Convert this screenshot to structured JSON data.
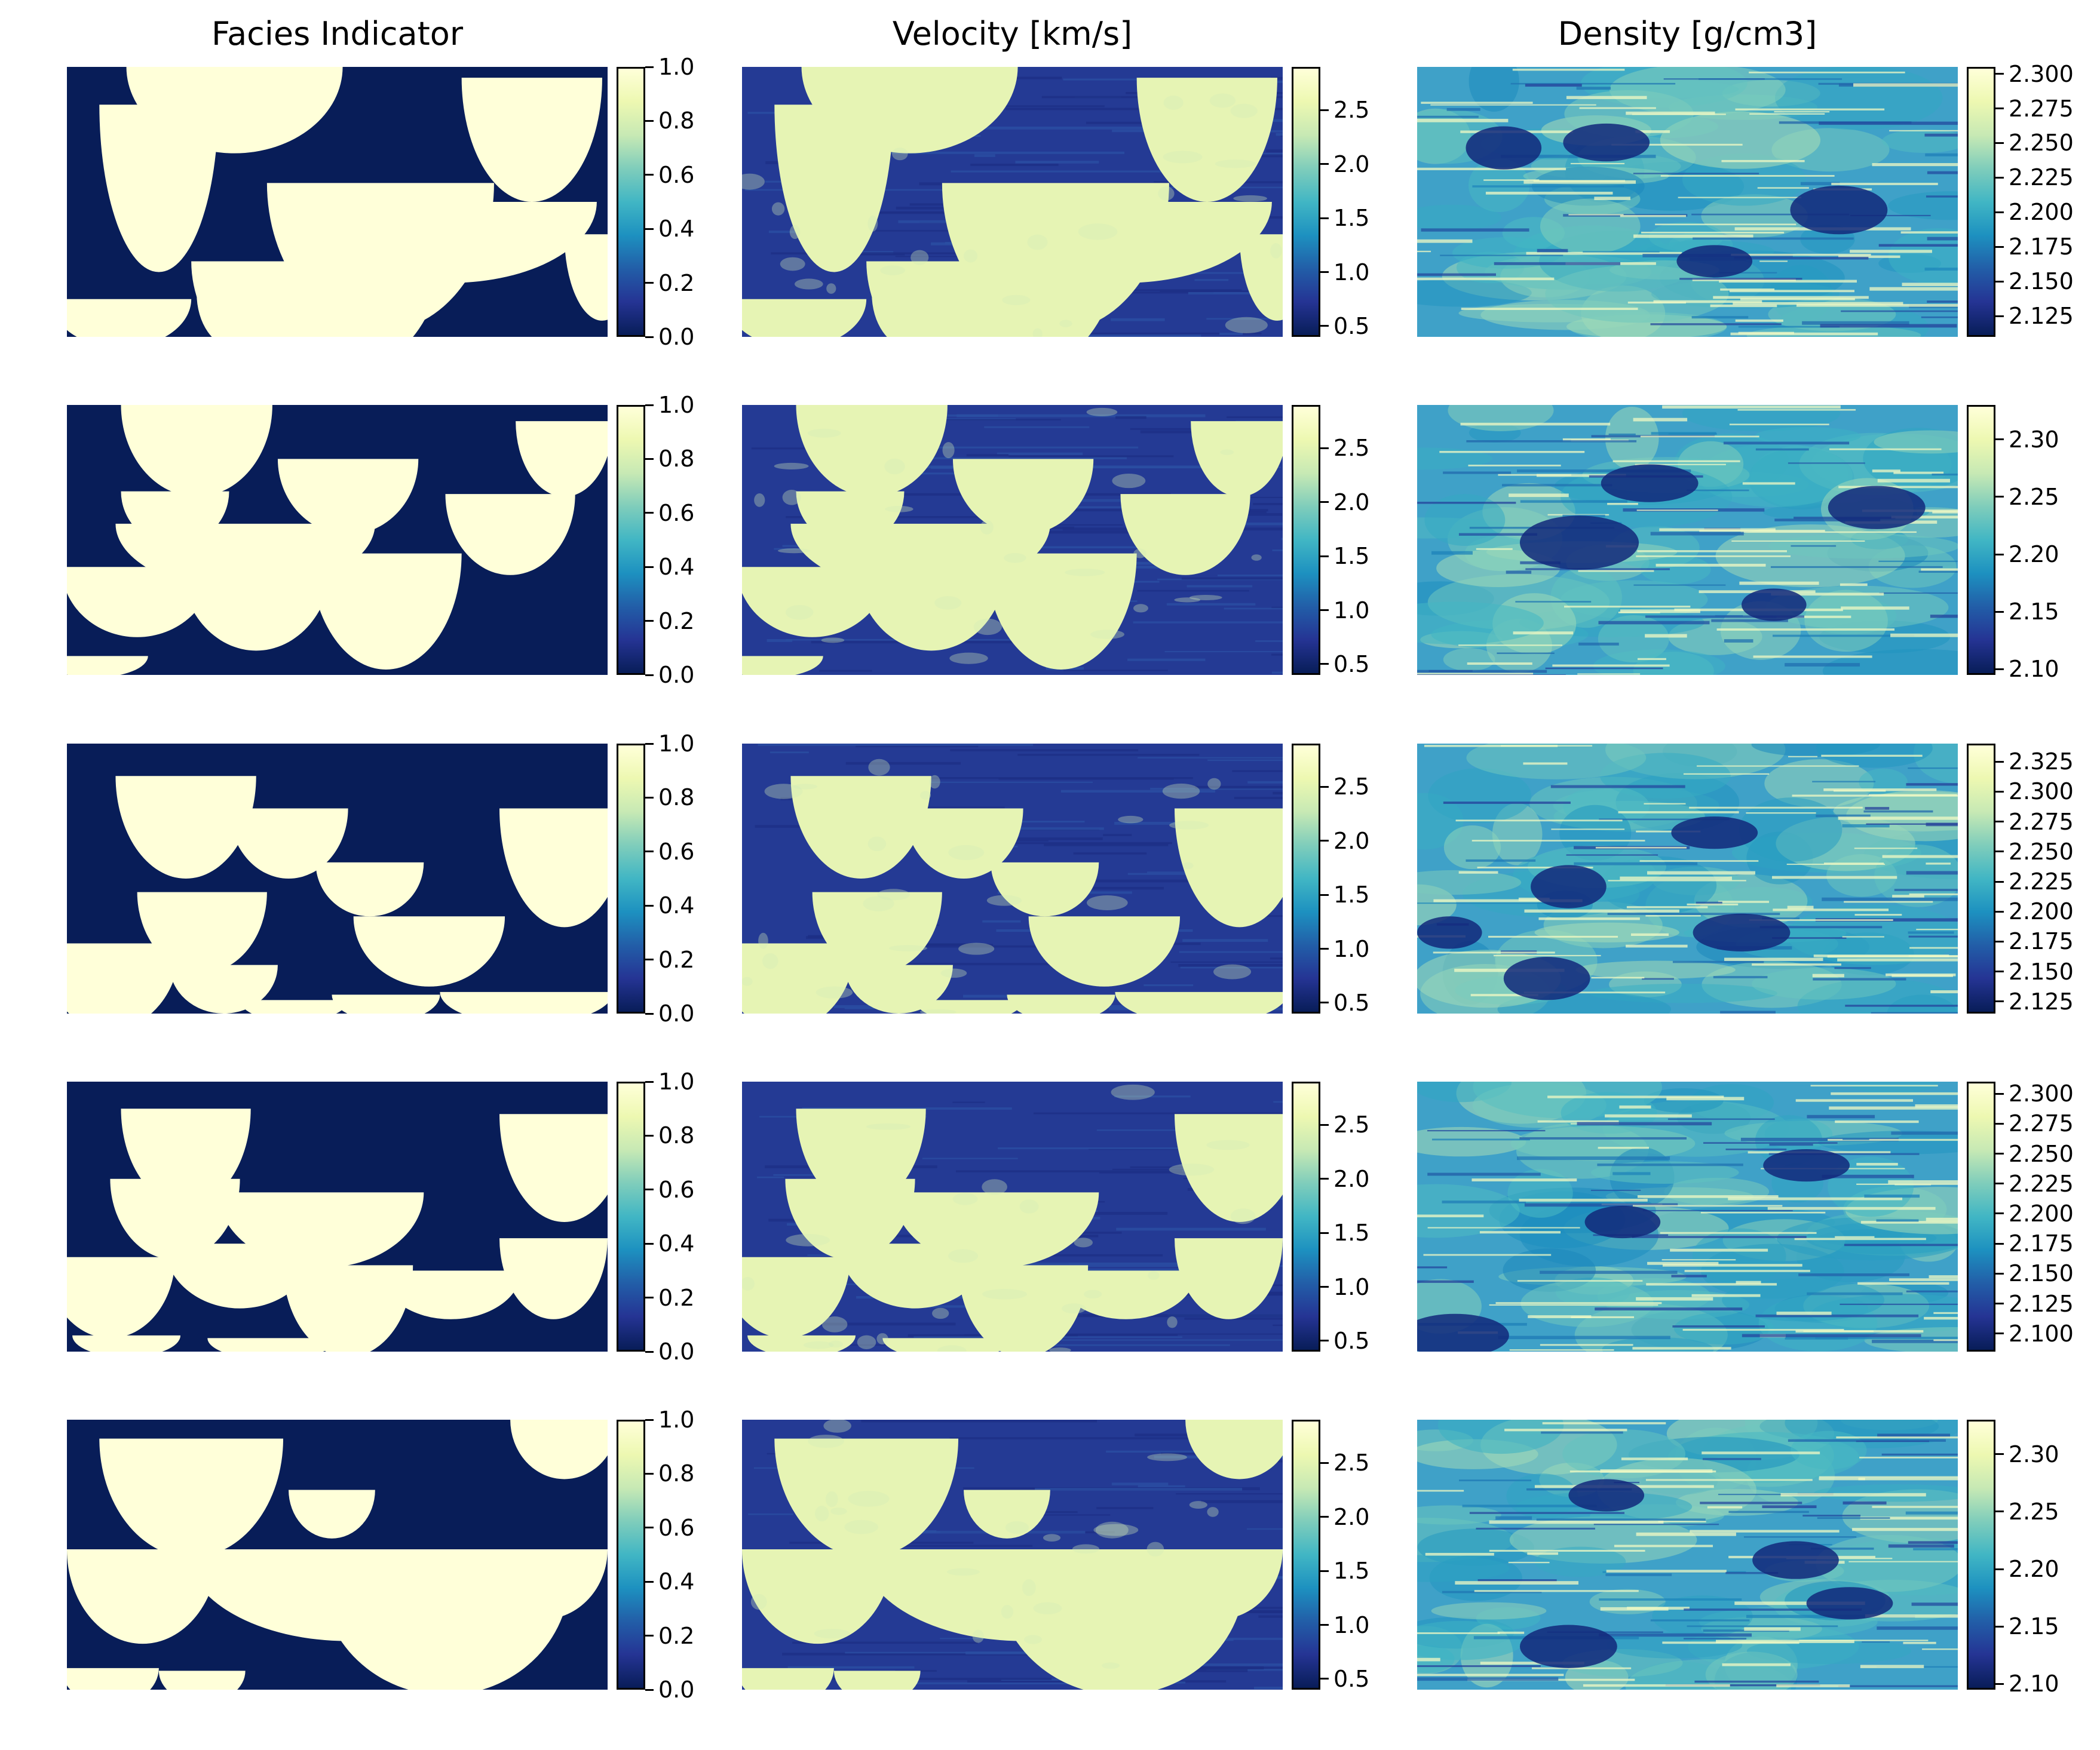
{
  "figure": {
    "columns": [
      {
        "title": "Facies Indicator",
        "quantity": "facies"
      },
      {
        "title": "Velocity [km/s]",
        "quantity": "velocity"
      },
      {
        "title": "Density [g/cm3]",
        "quantity": "density"
      }
    ],
    "colormap": [
      "#081d58",
      "#253494",
      "#225ea8",
      "#1d91c0",
      "#41b6c4",
      "#7fcdbb",
      "#c7e9b4",
      "#edf8b1",
      "#ffffd9"
    ]
  },
  "chart_data": [
    {
      "type": "heatmap",
      "row": 1,
      "title": "Facies Indicator",
      "colorbar": {
        "range": [
          0.0,
          1.0
        ],
        "ticks": [
          "0.0",
          "0.2",
          "0.4",
          "0.6",
          "0.8",
          "1.0"
        ]
      },
      "bodies": [
        [
          0.17,
          0.14,
          0.11,
          0.62
        ],
        [
          0.31,
          0.0,
          0.2,
          0.32
        ],
        [
          0.58,
          0.43,
          0.21,
          0.55
        ],
        [
          0.86,
          0.04,
          0.13,
          0.46
        ],
        [
          0.46,
          0.72,
          0.23,
          0.45
        ],
        [
          0.99,
          0.62,
          0.07,
          0.32
        ],
        [
          0.31,
          0.84,
          0.07,
          0.2
        ],
        [
          0.1,
          0.86,
          0.13,
          0.18
        ],
        [
          0.71,
          0.5,
          0.27,
          0.3
        ]
      ]
    },
    {
      "type": "heatmap",
      "row": 1,
      "title": "Velocity [km/s]",
      "colorbar": {
        "range": [
          0.4,
          2.9
        ],
        "ticks": [
          "0.5",
          "1.0",
          "1.5",
          "2.0",
          "2.5"
        ]
      },
      "bodies": [
        [
          0.17,
          0.14,
          0.11,
          0.62
        ],
        [
          0.31,
          0.0,
          0.2,
          0.32
        ],
        [
          0.58,
          0.43,
          0.21,
          0.55
        ],
        [
          0.86,
          0.04,
          0.13,
          0.46
        ],
        [
          0.46,
          0.72,
          0.23,
          0.45
        ],
        [
          0.99,
          0.62,
          0.07,
          0.32
        ],
        [
          0.31,
          0.84,
          0.07,
          0.2
        ],
        [
          0.1,
          0.86,
          0.13,
          0.18
        ],
        [
          0.71,
          0.5,
          0.27,
          0.3
        ]
      ]
    },
    {
      "type": "heatmap",
      "row": 1,
      "title": "Density [g/cm3]",
      "colorbar": {
        "range": [
          2.11,
          2.305
        ],
        "ticks": [
          "2.125",
          "2.150",
          "2.175",
          "2.200",
          "2.225",
          "2.250",
          "2.275",
          "2.300"
        ]
      },
      "lows": [
        [
          0.78,
          0.53,
          0.09,
          0.09
        ],
        [
          0.35,
          0.28,
          0.08,
          0.07
        ],
        [
          0.55,
          0.72,
          0.07,
          0.06
        ],
        [
          0.16,
          0.3,
          0.07,
          0.08
        ]
      ]
    },
    {
      "type": "heatmap",
      "row": 2,
      "title": "Facies Indicator",
      "colorbar": {
        "range": [
          0.0,
          1.0
        ],
        "ticks": [
          "0.0",
          "0.2",
          "0.4",
          "0.6",
          "0.8",
          "1.0"
        ]
      },
      "bodies": [
        [
          0.24,
          0.0,
          0.14,
          0.34
        ],
        [
          0.52,
          0.2,
          0.13,
          0.28
        ],
        [
          0.92,
          0.06,
          0.09,
          0.28
        ],
        [
          0.82,
          0.33,
          0.12,
          0.3
        ],
        [
          0.33,
          0.44,
          0.24,
          0.25
        ],
        [
          0.13,
          0.6,
          0.14,
          0.26
        ],
        [
          0.35,
          0.58,
          0.14,
          0.33
        ],
        [
          0.59,
          0.55,
          0.14,
          0.43
        ],
        [
          0.05,
          0.93,
          0.1,
          0.08
        ],
        [
          0.2,
          0.32,
          0.1,
          0.2
        ]
      ]
    },
    {
      "type": "heatmap",
      "row": 2,
      "title": "Velocity [km/s]",
      "colorbar": {
        "range": [
          0.4,
          2.9
        ],
        "ticks": [
          "0.5",
          "1.0",
          "1.5",
          "2.0",
          "2.5"
        ]
      },
      "bodies": [
        [
          0.24,
          0.0,
          0.14,
          0.34
        ],
        [
          0.52,
          0.2,
          0.13,
          0.28
        ],
        [
          0.92,
          0.06,
          0.09,
          0.28
        ],
        [
          0.82,
          0.33,
          0.12,
          0.3
        ],
        [
          0.33,
          0.44,
          0.24,
          0.25
        ],
        [
          0.13,
          0.6,
          0.14,
          0.26
        ],
        [
          0.35,
          0.58,
          0.14,
          0.33
        ],
        [
          0.59,
          0.55,
          0.14,
          0.43
        ],
        [
          0.05,
          0.93,
          0.1,
          0.08
        ],
        [
          0.2,
          0.32,
          0.1,
          0.2
        ]
      ]
    },
    {
      "type": "heatmap",
      "row": 2,
      "title": "Density [g/cm3]",
      "colorbar": {
        "range": [
          2.095,
          2.33
        ],
        "ticks": [
          "2.10",
          "2.15",
          "2.20",
          "2.25",
          "2.30"
        ]
      },
      "lows": [
        [
          0.3,
          0.51,
          0.11,
          0.1
        ],
        [
          0.85,
          0.38,
          0.09,
          0.08
        ],
        [
          0.43,
          0.29,
          0.09,
          0.07
        ],
        [
          0.66,
          0.74,
          0.06,
          0.06
        ]
      ]
    },
    {
      "type": "heatmap",
      "row": 3,
      "title": "Facies Indicator",
      "colorbar": {
        "range": [
          0.0,
          1.0
        ],
        "ticks": [
          "0.0",
          "0.2",
          "0.4",
          "0.6",
          "0.8",
          "1.0"
        ]
      },
      "bodies": [
        [
          0.22,
          0.12,
          0.13,
          0.38
        ],
        [
          0.41,
          0.24,
          0.11,
          0.26
        ],
        [
          0.56,
          0.44,
          0.1,
          0.2
        ],
        [
          0.92,
          0.24,
          0.12,
          0.44
        ],
        [
          0.25,
          0.55,
          0.12,
          0.3
        ],
        [
          0.08,
          0.74,
          0.13,
          0.32
        ],
        [
          0.29,
          0.82,
          0.1,
          0.18
        ],
        [
          0.42,
          0.95,
          0.1,
          0.08
        ],
        [
          0.67,
          0.64,
          0.14,
          0.26
        ],
        [
          0.85,
          0.92,
          0.16,
          0.12
        ],
        [
          0.59,
          0.93,
          0.1,
          0.1
        ]
      ]
    },
    {
      "type": "heatmap",
      "row": 3,
      "title": "Velocity [km/s]",
      "colorbar": {
        "range": [
          0.4,
          2.9
        ],
        "ticks": [
          "0.5",
          "1.0",
          "1.5",
          "2.0",
          "2.5"
        ]
      },
      "bodies": [
        [
          0.22,
          0.12,
          0.13,
          0.38
        ],
        [
          0.41,
          0.24,
          0.11,
          0.26
        ],
        [
          0.56,
          0.44,
          0.1,
          0.2
        ],
        [
          0.92,
          0.24,
          0.12,
          0.44
        ],
        [
          0.25,
          0.55,
          0.12,
          0.3
        ],
        [
          0.08,
          0.74,
          0.13,
          0.32
        ],
        [
          0.29,
          0.82,
          0.1,
          0.18
        ],
        [
          0.42,
          0.95,
          0.1,
          0.08
        ],
        [
          0.67,
          0.64,
          0.14,
          0.26
        ],
        [
          0.85,
          0.92,
          0.16,
          0.12
        ],
        [
          0.59,
          0.93,
          0.1,
          0.1
        ]
      ]
    },
    {
      "type": "heatmap",
      "row": 3,
      "title": "Density [g/cm3]",
      "colorbar": {
        "range": [
          2.115,
          2.34
        ],
        "ticks": [
          "2.125",
          "2.150",
          "2.175",
          "2.200",
          "2.225",
          "2.250",
          "2.275",
          "2.300",
          "2.325"
        ]
      },
      "lows": [
        [
          0.28,
          0.53,
          0.07,
          0.08
        ],
        [
          0.24,
          0.87,
          0.08,
          0.08
        ],
        [
          0.6,
          0.7,
          0.09,
          0.07
        ],
        [
          0.55,
          0.33,
          0.08,
          0.06
        ],
        [
          0.06,
          0.7,
          0.06,
          0.06
        ]
      ]
    },
    {
      "type": "heatmap",
      "row": 4,
      "title": "Facies Indicator",
      "colorbar": {
        "range": [
          0.0,
          1.0
        ],
        "ticks": [
          "0.0",
          "0.2",
          "0.4",
          "0.6",
          "0.8",
          "1.0"
        ]
      },
      "bodies": [
        [
          0.22,
          0.1,
          0.12,
          0.36
        ],
        [
          0.92,
          0.12,
          0.12,
          0.4
        ],
        [
          0.2,
          0.36,
          0.12,
          0.3
        ],
        [
          0.47,
          0.41,
          0.19,
          0.28
        ],
        [
          0.32,
          0.6,
          0.14,
          0.24
        ],
        [
          0.08,
          0.65,
          0.12,
          0.3
        ],
        [
          0.52,
          0.68,
          0.12,
          0.34
        ],
        [
          0.9,
          0.58,
          0.1,
          0.3
        ],
        [
          0.71,
          0.7,
          0.13,
          0.18
        ],
        [
          0.11,
          0.94,
          0.1,
          0.08
        ],
        [
          0.38,
          0.95,
          0.12,
          0.08
        ]
      ]
    },
    {
      "type": "heatmap",
      "row": 4,
      "title": "Velocity [km/s]",
      "colorbar": {
        "range": [
          0.4,
          2.9
        ],
        "ticks": [
          "0.5",
          "1.0",
          "1.5",
          "2.0",
          "2.5"
        ]
      },
      "bodies": [
        [
          0.22,
          0.1,
          0.12,
          0.36
        ],
        [
          0.92,
          0.12,
          0.12,
          0.4
        ],
        [
          0.2,
          0.36,
          0.12,
          0.3
        ],
        [
          0.47,
          0.41,
          0.19,
          0.28
        ],
        [
          0.32,
          0.6,
          0.14,
          0.24
        ],
        [
          0.08,
          0.65,
          0.12,
          0.3
        ],
        [
          0.52,
          0.68,
          0.12,
          0.34
        ],
        [
          0.9,
          0.58,
          0.1,
          0.3
        ],
        [
          0.71,
          0.7,
          0.13,
          0.18
        ],
        [
          0.11,
          0.94,
          0.1,
          0.08
        ],
        [
          0.38,
          0.95,
          0.12,
          0.08
        ]
      ]
    },
    {
      "type": "heatmap",
      "row": 4,
      "title": "Density [g/cm3]",
      "colorbar": {
        "range": [
          2.085,
          2.31
        ],
        "ticks": [
          "2.100",
          "2.125",
          "2.150",
          "2.175",
          "2.200",
          "2.225",
          "2.250",
          "2.275",
          "2.300"
        ]
      },
      "lows": [
        [
          0.07,
          0.94,
          0.1,
          0.08
        ],
        [
          0.72,
          0.31,
          0.08,
          0.06
        ],
        [
          0.38,
          0.52,
          0.07,
          0.06
        ]
      ]
    },
    {
      "type": "heatmap",
      "row": 5,
      "title": "Facies Indicator",
      "colorbar": {
        "range": [
          0.0,
          1.0
        ],
        "ticks": [
          "0.0",
          "0.2",
          "0.4",
          "0.6",
          "0.8",
          "1.0"
        ]
      },
      "bodies": [
        [
          0.23,
          0.07,
          0.17,
          0.44
        ],
        [
          0.49,
          0.26,
          0.08,
          0.18
        ],
        [
          0.92,
          0.0,
          0.1,
          0.22
        ],
        [
          0.14,
          0.48,
          0.14,
          0.35
        ],
        [
          0.52,
          0.48,
          0.3,
          0.34
        ],
        [
          0.7,
          0.58,
          0.23,
          0.44
        ],
        [
          0.88,
          0.48,
          0.12,
          0.26
        ],
        [
          0.08,
          0.92,
          0.09,
          0.14
        ],
        [
          0.25,
          0.93,
          0.08,
          0.12
        ]
      ]
    },
    {
      "type": "heatmap",
      "row": 5,
      "title": "Velocity [km/s]",
      "colorbar": {
        "range": [
          0.4,
          2.9
        ],
        "ticks": [
          "0.5",
          "1.0",
          "1.5",
          "2.0",
          "2.5"
        ]
      },
      "bodies": [
        [
          0.23,
          0.07,
          0.17,
          0.44
        ],
        [
          0.49,
          0.26,
          0.08,
          0.18
        ],
        [
          0.92,
          0.0,
          0.1,
          0.22
        ],
        [
          0.14,
          0.48,
          0.14,
          0.35
        ],
        [
          0.52,
          0.48,
          0.3,
          0.34
        ],
        [
          0.7,
          0.58,
          0.23,
          0.44
        ],
        [
          0.88,
          0.48,
          0.12,
          0.26
        ],
        [
          0.08,
          0.92,
          0.09,
          0.14
        ],
        [
          0.25,
          0.93,
          0.08,
          0.12
        ]
      ]
    },
    {
      "type": "heatmap",
      "row": 5,
      "title": "Density [g/cm3]",
      "colorbar": {
        "range": [
          2.095,
          2.33
        ],
        "ticks": [
          "2.10",
          "2.15",
          "2.20",
          "2.25",
          "2.30"
        ]
      },
      "lows": [
        [
          0.28,
          0.84,
          0.09,
          0.08
        ],
        [
          0.7,
          0.52,
          0.08,
          0.07
        ],
        [
          0.8,
          0.68,
          0.08,
          0.06
        ],
        [
          0.35,
          0.28,
          0.07,
          0.06
        ]
      ]
    }
  ]
}
